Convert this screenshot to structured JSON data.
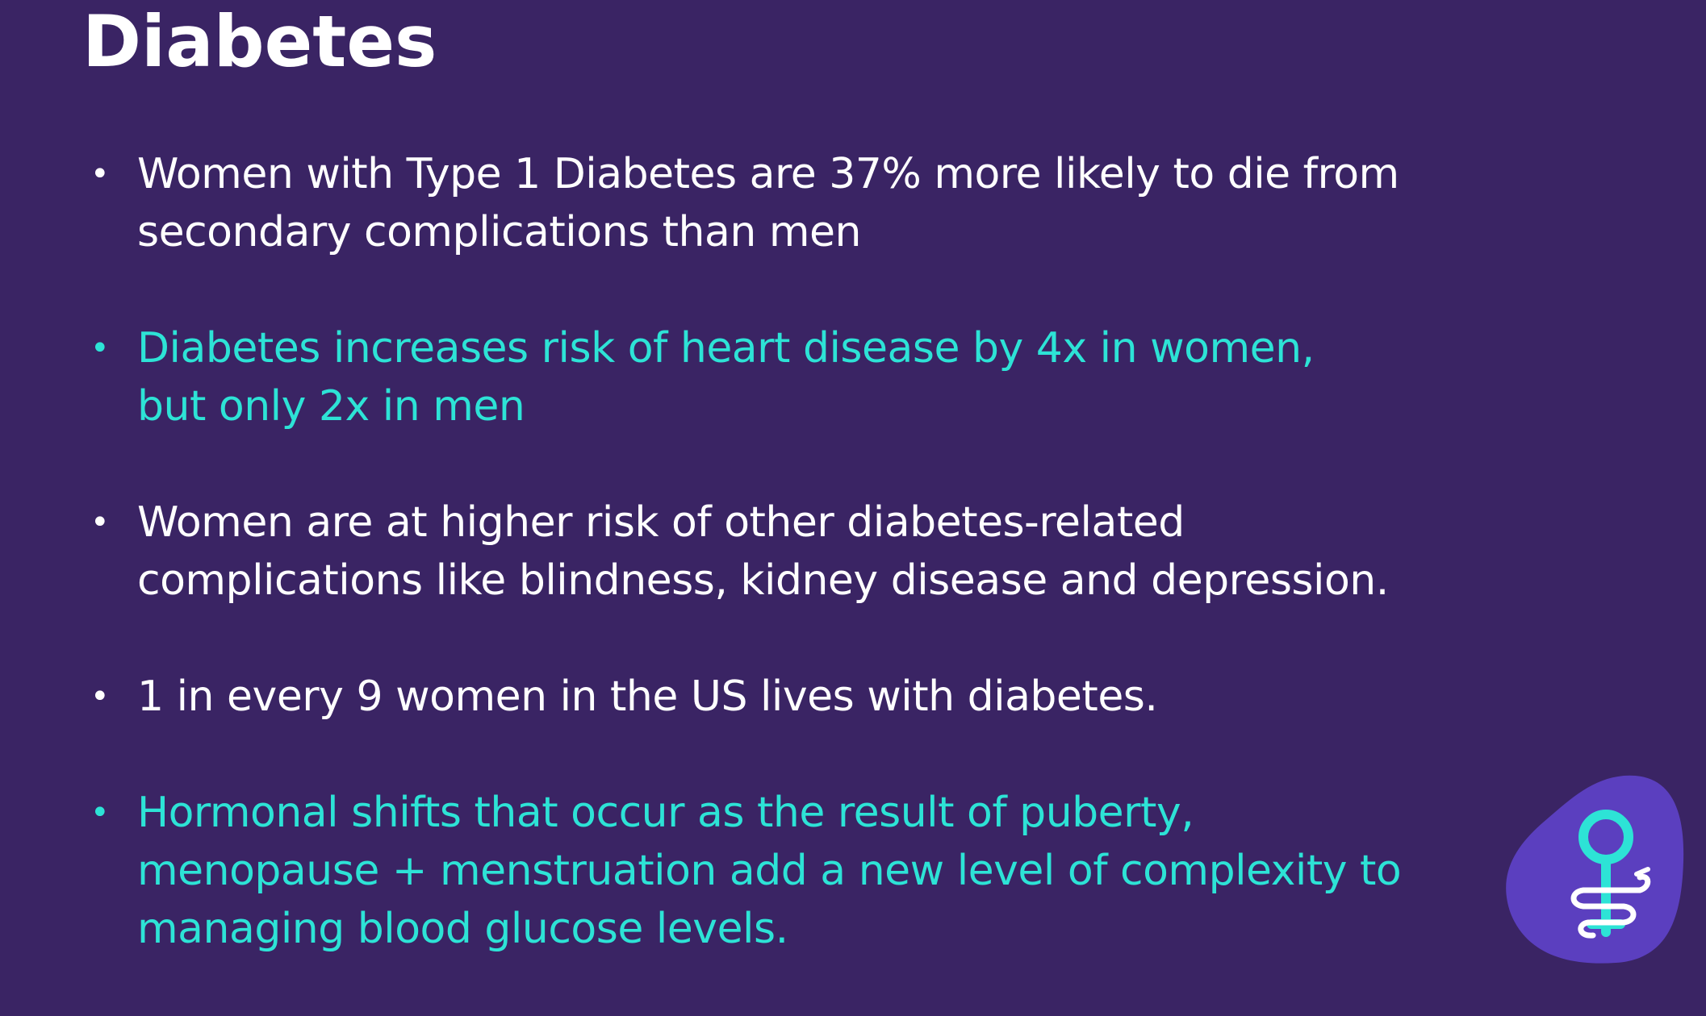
{
  "slide": {
    "title": "Diabetes",
    "bullet_marker": "•",
    "bullets": [
      {
        "lines": [
          "Women with Type 1 Diabetes are 37% more likely to die from",
          "secondary complications than men"
        ],
        "color": "#ffffff"
      },
      {
        "lines": [
          "Diabetes increases risk of heart disease by 4x in women,",
          "but only 2x in men"
        ],
        "color": "#2de3d6"
      },
      {
        "lines": [
          "Women are at higher risk of other diabetes-related",
          "complications like blindness, kidney disease and depression."
        ],
        "color": "#ffffff"
      },
      {
        "lines": [
          "1 in every 9 women in the US lives with diabetes."
        ],
        "color": "#ffffff"
      },
      {
        "lines": [
          "Hormonal shifts that occur as the result of puberty,",
          "menopause + menstruation add a new level of complexity to",
          "managing blood glucose levels."
        ],
        "color": "#2de3d6"
      }
    ]
  },
  "logo": {
    "icon": "female-symbol-caduceus-icon",
    "blob_color": "#5b3fbf",
    "symbol_color": "#2de3d6",
    "snake_color": "#ffffff"
  },
  "colors": {
    "background": "#3a2464",
    "accent": "#2de3d6",
    "text": "#ffffff"
  }
}
